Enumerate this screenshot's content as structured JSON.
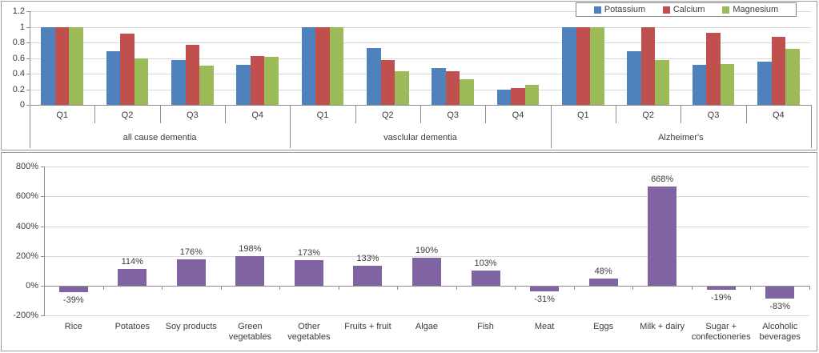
{
  "colors": {
    "potassium": "#4F81BD",
    "calcium": "#C0504D",
    "magnesium": "#9BBB59",
    "food_bar": "#8064A2",
    "gridline": "#d9d9d9",
    "axis": "#8f8f8f",
    "text": "#3c3c3c"
  },
  "chart_data": [
    {
      "type": "bar",
      "title": "",
      "groups": [
        {
          "label": "all cause dementia",
          "categories": [
            "Q1",
            "Q2",
            "Q3",
            "Q4"
          ]
        },
        {
          "label": "vasclular dementia",
          "categories": [
            "Q1",
            "Q2",
            "Q3",
            "Q4"
          ]
        },
        {
          "label": "Alzheimer's",
          "categories": [
            "Q1",
            "Q2",
            "Q3",
            "Q4"
          ]
        }
      ],
      "series": [
        {
          "name": "Potassium",
          "color": "#4F81BD",
          "values": [
            [
              1,
              0.69,
              0.57,
              0.51
            ],
            [
              1,
              0.73,
              0.47,
              0.2
            ],
            [
              1,
              0.69,
              0.51,
              0.55
            ]
          ]
        },
        {
          "name": "Calcium",
          "color": "#C0504D",
          "values": [
            [
              1,
              0.91,
              0.77,
              0.63
            ],
            [
              1,
              0.57,
              0.43,
              0.22
            ],
            [
              1,
              1.0,
              0.92,
              0.87
            ]
          ]
        },
        {
          "name": "Magnesium",
          "color": "#9BBB59",
          "values": [
            [
              1,
              0.6,
              0.5,
              0.62
            ],
            [
              1,
              0.43,
              0.33,
              0.26
            ],
            [
              1,
              0.57,
              0.52,
              0.72
            ]
          ]
        }
      ],
      "ylim": [
        0,
        1.2
      ],
      "yticks": [
        "0",
        "0.2",
        "0.4",
        "0.6",
        "0.8",
        "1",
        "1.2"
      ],
      "legend": {
        "position": "top-right",
        "entries": [
          "Potassium",
          "Calcium",
          "Magnesium"
        ]
      },
      "grid": true
    },
    {
      "type": "bar",
      "title": "",
      "categories": [
        [
          "Rice"
        ],
        [
          "Potatoes"
        ],
        [
          "Soy products"
        ],
        [
          "Green",
          "vegetables"
        ],
        [
          "Other",
          "vegetables"
        ],
        [
          "Fruits + fruit"
        ],
        [
          "Algae"
        ],
        [
          "Fish"
        ],
        [
          "Meat"
        ],
        [
          "Eggs"
        ],
        [
          "Milk + dairy"
        ],
        [
          "Sugar +",
          "confectioneries"
        ],
        [
          "Alcoholic",
          "beverages"
        ]
      ],
      "values": [
        -39,
        114,
        176,
        198,
        173,
        133,
        190,
        103,
        -31,
        48,
        668,
        -19,
        -83
      ],
      "data_labels": [
        "-39%",
        "114%",
        "176%",
        "198%",
        "173%",
        "133%",
        "190%",
        "103%",
        "-31%",
        "48%",
        "668%",
        "-19%",
        "-83%"
      ],
      "bar_color": "#8064A2",
      "ylim": [
        -200,
        800
      ],
      "yticks": [
        "800%",
        "600%",
        "400%",
        "200%",
        "0%",
        "-200%"
      ],
      "grid": true,
      "legend": null
    }
  ]
}
